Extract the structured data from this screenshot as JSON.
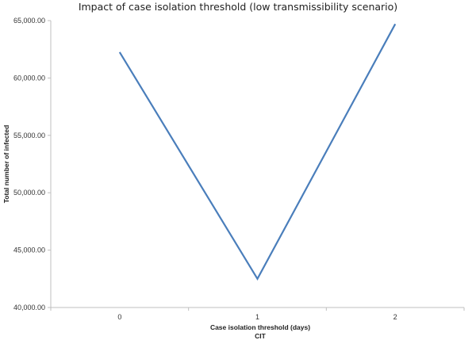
{
  "chart_data": {
    "type": "line",
    "title": "Impact of case isolation threshold (low transmissibility scenario)",
    "xlabel": "Case isolation threshold (days)",
    "xlabel_sub": "CIT",
    "ylabel": "Total number of infected",
    "categories": [
      "0",
      "1",
      "2"
    ],
    "series": [
      {
        "values": [
          62250,
          42500,
          64700
        ],
        "color": "#4a7ebb"
      }
    ],
    "ylim": [
      40000,
      65000
    ],
    "yticks": [
      40000,
      45000,
      50000,
      55000,
      60000,
      65000
    ],
    "ytick_labels": [
      "40,000.00",
      "45,000.00",
      "50,000.00",
      "55,000.00",
      "60,000.00",
      "65,000.00"
    ],
    "grid": false,
    "legend": "none",
    "axis_color": "#bfbfbf"
  }
}
